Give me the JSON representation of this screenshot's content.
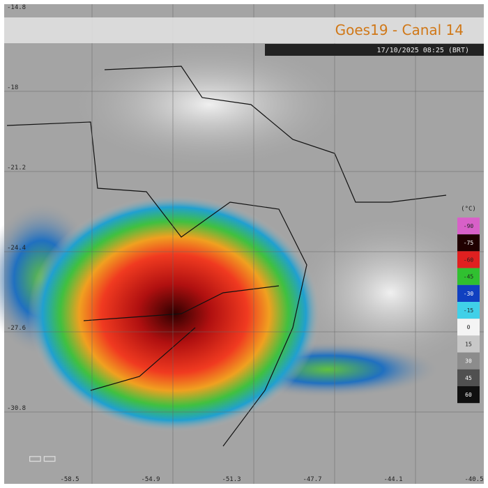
{
  "title": "Goes19 - Canal 14",
  "timestamp": "17/10/2025 08:25 (BRT)",
  "latitudes": [
    -14.8,
    -18.0,
    -21.2,
    -24.4,
    -27.6,
    -30.8
  ],
  "longitudes": [
    -58.5,
    -54.9,
    -51.3,
    -47.7,
    -44.1,
    -40.5
  ],
  "colorbar": {
    "unit": "(°C)",
    "levels": [
      {
        "value": -90,
        "color": "#d860c8"
      },
      {
        "value": -75,
        "color": "#200000"
      },
      {
        "value": -60,
        "color": "#e02020"
      },
      {
        "value": -45,
        "color": "#30c030"
      },
      {
        "value": -30,
        "color": "#1040c0"
      },
      {
        "value": -15,
        "color": "#40d0e8"
      },
      {
        "value": 0,
        "color": "#f4f4f4"
      },
      {
        "value": 15,
        "color": "#c8c8c8"
      },
      {
        "value": 30,
        "color": "#8c8c8c"
      },
      {
        "value": 45,
        "color": "#505050"
      },
      {
        "value": 60,
        "color": "#101010"
      }
    ]
  }
}
